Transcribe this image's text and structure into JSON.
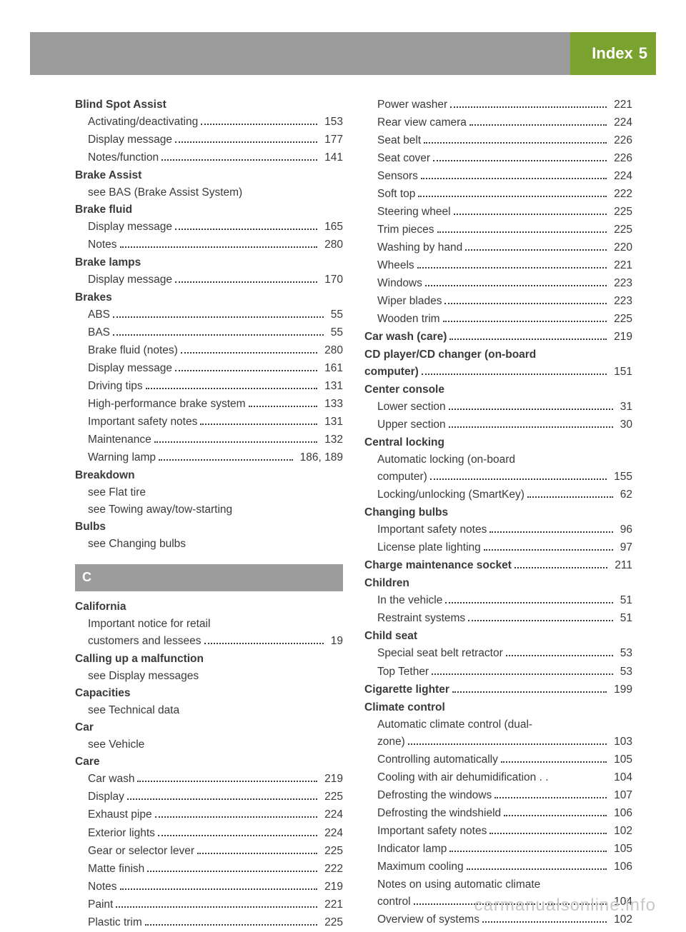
{
  "tab": {
    "label": "Index",
    "page": "5"
  },
  "footer": "carmanualsonline.info",
  "section_c_label": "C",
  "colors": {
    "topbar": "#9c9c9c",
    "tab_bg": "#7aa22f",
    "tab_text": "#ffffff",
    "text": "#3a3a3a",
    "footer": "#c8c8c8"
  },
  "left": [
    {
      "head": "Blind Spot Assist"
    },
    {
      "sub": "Activating/deactivating",
      "pg": "153"
    },
    {
      "sub": "Display message",
      "pg": "177"
    },
    {
      "sub": "Notes/function",
      "pg": "141"
    },
    {
      "head": "Brake Assist"
    },
    {
      "sub_plain": "see BAS (Brake Assist System)"
    },
    {
      "head": "Brake fluid"
    },
    {
      "sub": "Display message",
      "pg": "165"
    },
    {
      "sub": "Notes",
      "pg": "280"
    },
    {
      "head": "Brake lamps"
    },
    {
      "sub": "Display message",
      "pg": "170"
    },
    {
      "head": "Brakes"
    },
    {
      "sub": "ABS",
      "pg": "55"
    },
    {
      "sub": "BAS",
      "pg": "55"
    },
    {
      "sub": "Brake fluid (notes)",
      "pg": "280"
    },
    {
      "sub": "Display message",
      "pg": "161"
    },
    {
      "sub": "Driving tips",
      "pg": "131"
    },
    {
      "sub": "High-performance brake system",
      "pg": "133"
    },
    {
      "sub": "Important safety notes",
      "pg": "131"
    },
    {
      "sub": "Maintenance",
      "pg": "132"
    },
    {
      "sub": "Warning lamp",
      "pg": "186, 189"
    },
    {
      "head": "Breakdown"
    },
    {
      "sub_plain": "see Flat tire"
    },
    {
      "sub_plain": "see Towing away/tow-starting"
    },
    {
      "head": "Bulbs"
    },
    {
      "sub_plain": "see Changing bulbs"
    },
    {
      "section": "C"
    },
    {
      "head": "California"
    },
    {
      "sub_plain": "Important notice for retail"
    },
    {
      "sub": "customers and lessees",
      "pg": "19"
    },
    {
      "head": "Calling up a malfunction"
    },
    {
      "sub_plain": "see Display messages"
    },
    {
      "head": "Capacities"
    },
    {
      "sub_plain": "see Technical data"
    },
    {
      "head": "Car"
    },
    {
      "sub_plain": "see Vehicle"
    },
    {
      "head": "Care"
    },
    {
      "sub": "Car wash",
      "pg": "219"
    },
    {
      "sub": "Display",
      "pg": "225"
    },
    {
      "sub": "Exhaust pipe",
      "pg": "224"
    },
    {
      "sub": "Exterior lights",
      "pg": "224"
    },
    {
      "sub": "Gear or selector lever",
      "pg": "225"
    },
    {
      "sub": "Matte finish",
      "pg": "222"
    },
    {
      "sub": "Notes",
      "pg": "219"
    },
    {
      "sub": "Paint",
      "pg": "221"
    },
    {
      "sub": "Plastic trim",
      "pg": "225"
    }
  ],
  "right": [
    {
      "sub": "Power washer",
      "pg": "221"
    },
    {
      "sub": "Rear view camera",
      "pg": "224"
    },
    {
      "sub": "Seat belt",
      "pg": "226"
    },
    {
      "sub": "Seat cover",
      "pg": "226"
    },
    {
      "sub": "Sensors",
      "pg": "224"
    },
    {
      "sub": "Soft top",
      "pg": "222"
    },
    {
      "sub": "Steering wheel",
      "pg": "225"
    },
    {
      "sub": "Trim pieces",
      "pg": "225"
    },
    {
      "sub": "Washing by hand",
      "pg": "220"
    },
    {
      "sub": "Wheels",
      "pg": "221"
    },
    {
      "sub": "Windows",
      "pg": "223"
    },
    {
      "sub": "Wiper blades",
      "pg": "223"
    },
    {
      "sub": "Wooden trim",
      "pg": "225"
    },
    {
      "main": "Car wash (care)",
      "pg": "219"
    },
    {
      "head": "CD player/CD changer (on-board"
    },
    {
      "main": "computer)",
      "pg": "151"
    },
    {
      "head": "Center console"
    },
    {
      "sub": "Lower section",
      "pg": "31"
    },
    {
      "sub": "Upper section",
      "pg": "30"
    },
    {
      "head": "Central locking"
    },
    {
      "sub_plain": "Automatic locking (on-board"
    },
    {
      "sub": "computer)",
      "pg": "155"
    },
    {
      "sub": "Locking/unlocking (SmartKey)",
      "pg": "62"
    },
    {
      "head": "Changing bulbs"
    },
    {
      "sub": "Important safety notes",
      "pg": "96"
    },
    {
      "sub": "License plate lighting",
      "pg": "97"
    },
    {
      "main": "Charge maintenance socket",
      "pg": "211"
    },
    {
      "head": "Children"
    },
    {
      "sub": "In the vehicle",
      "pg": "51"
    },
    {
      "sub": "Restraint systems",
      "pg": "51"
    },
    {
      "head": "Child seat"
    },
    {
      "sub": "Special seat belt retractor",
      "pg": "53"
    },
    {
      "sub": "Top Tether",
      "pg": "53"
    },
    {
      "main": "Cigarette lighter",
      "pg": "199"
    },
    {
      "head": "Climate control"
    },
    {
      "sub_plain": "Automatic climate control (dual-"
    },
    {
      "sub": "zone)",
      "pg": "103"
    },
    {
      "sub": "Controlling automatically",
      "pg": "105"
    },
    {
      "sub": "Cooling with air dehumidification . .",
      "pg": "104",
      "nodots": true
    },
    {
      "sub": "Defrosting the windows",
      "pg": "107"
    },
    {
      "sub": "Defrosting the windshield",
      "pg": "106"
    },
    {
      "sub": "Important safety notes",
      "pg": "102"
    },
    {
      "sub": "Indicator lamp",
      "pg": "105"
    },
    {
      "sub": "Maximum cooling",
      "pg": "106"
    },
    {
      "sub_plain": "Notes on using automatic climate"
    },
    {
      "sub": "control",
      "pg": "104"
    },
    {
      "sub": "Overview of systems",
      "pg": "102"
    }
  ]
}
